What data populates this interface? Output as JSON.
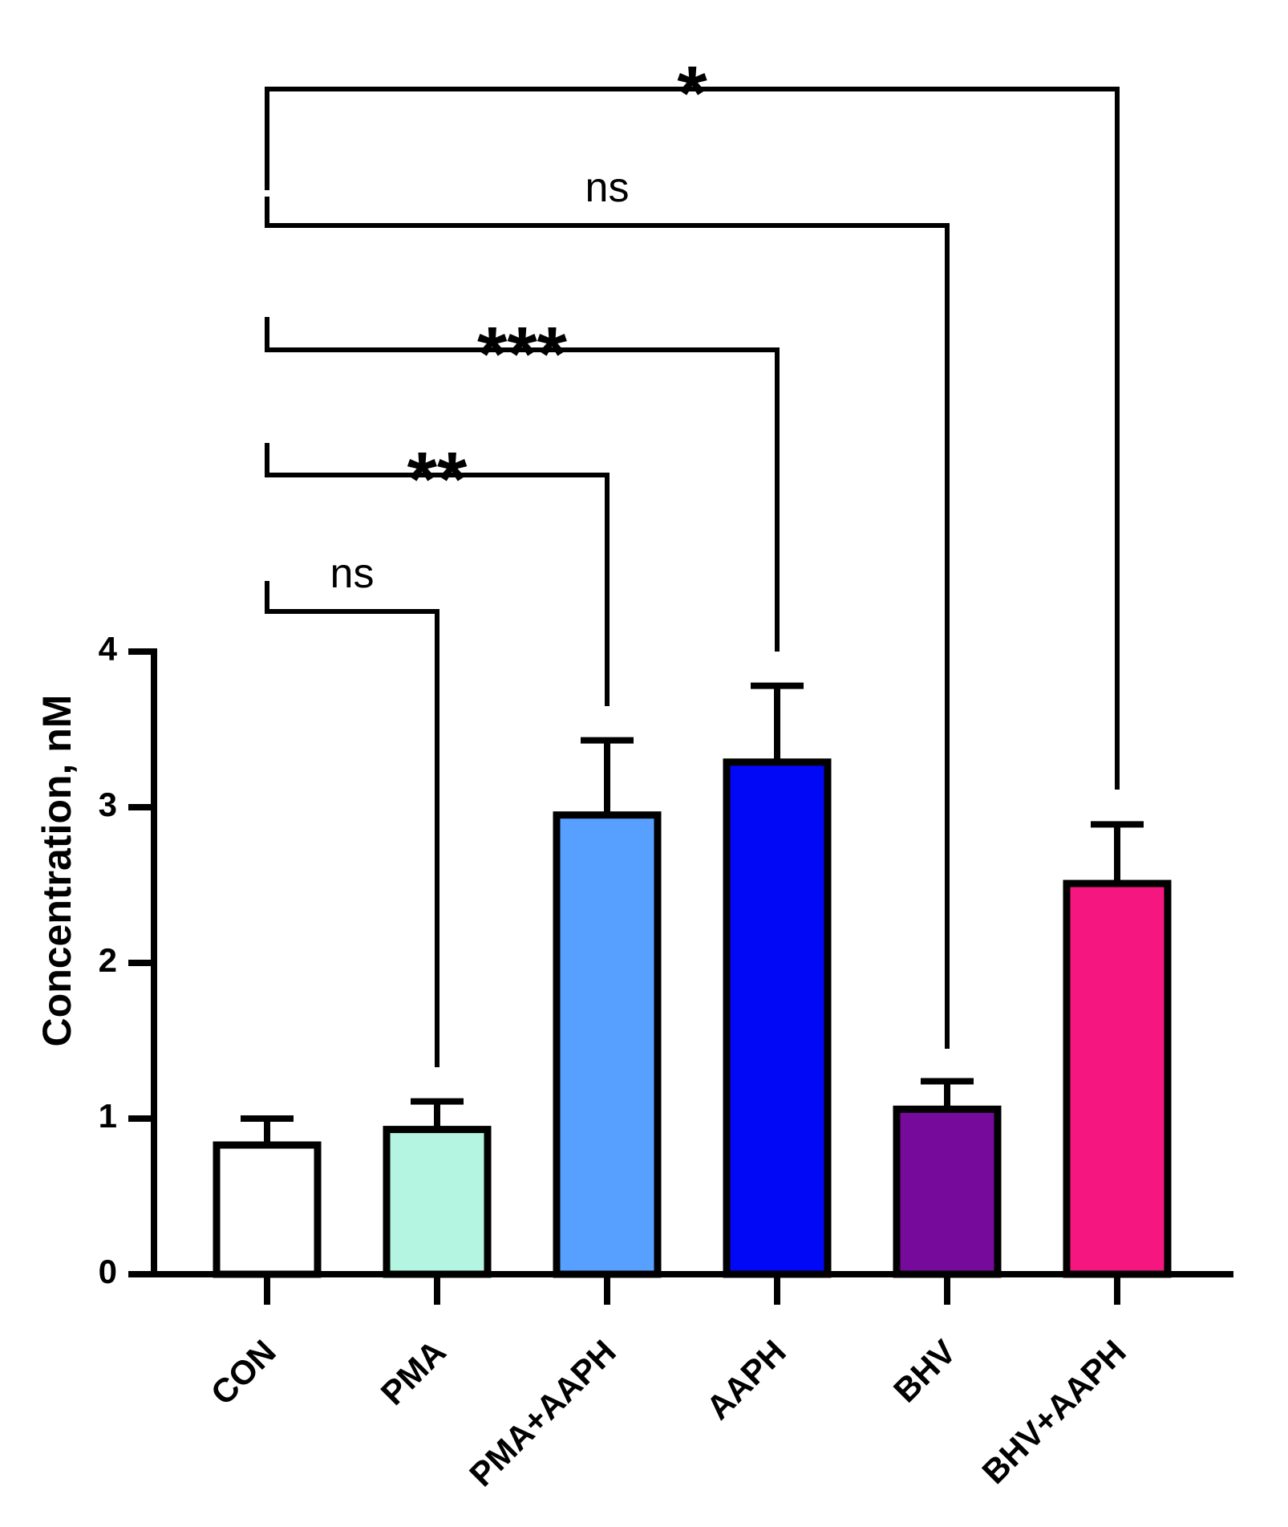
{
  "chart_data": {
    "type": "bar",
    "title": "",
    "xlabel": "",
    "ylabel": "Concentration, nM",
    "ylim": [
      0,
      4
    ],
    "yticks": [
      "0",
      "1",
      "2",
      "3",
      "4"
    ],
    "grid": false,
    "categories": [
      "CON",
      "PMA",
      "PMA+AAPH",
      "AAPH",
      "BHV",
      "BHV+AAPH"
    ],
    "values": [
      0.83,
      0.93,
      2.95,
      3.29,
      1.06,
      2.51
    ],
    "errors": [
      0.17,
      0.18,
      0.48,
      0.49,
      0.18,
      0.38
    ],
    "colors": [
      "#ffffff",
      "#b3f5e0",
      "#57a0ff",
      "#0008f5",
      "#760a9b",
      "#f5177f"
    ],
    "comparisons": [
      {
        "from": "CON",
        "to": "PMA",
        "label": "ns"
      },
      {
        "from": "CON",
        "to": "PMA+AAPH",
        "label": "**"
      },
      {
        "from": "CON",
        "to": "AAPH",
        "label": "***"
      },
      {
        "from": "CON",
        "to": "BHV",
        "label": "ns"
      },
      {
        "from": "CON",
        "to": "BHV+AAPH",
        "label": "*"
      }
    ]
  }
}
